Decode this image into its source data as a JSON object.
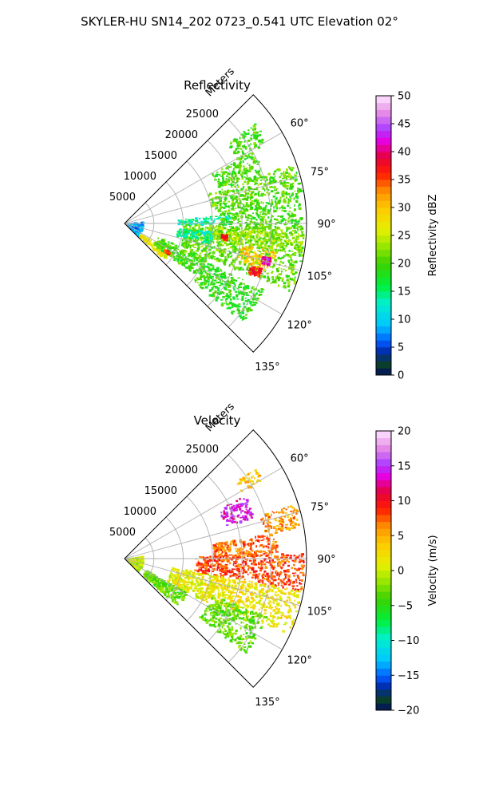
{
  "figure": {
    "suptitle": "SKYLER-HU  SN14_202  0723_0.541 UTC Elevation 02°"
  },
  "chart_data": [
    {
      "type": "heatmap",
      "projection": "polar-sector",
      "title": "Reflectivity",
      "radial_label": "Meters",
      "r_ticks": [
        5000,
        10000,
        15000,
        20000,
        25000
      ],
      "r_tick_labels": [
        "5000",
        "10000",
        "15000",
        "20000",
        "25000"
      ],
      "r_max": 31000,
      "theta_range_deg": [
        45,
        135
      ],
      "theta_ticks": [
        60,
        75,
        90,
        105,
        120,
        135
      ],
      "theta_tick_labels": [
        "60°",
        "75°",
        "90°",
        "105°",
        "120°",
        "135°"
      ],
      "grid": true,
      "colorbar": {
        "label": "Reflectivity dBZ",
        "range": [
          0,
          50
        ],
        "ticks": [
          0,
          5,
          10,
          15,
          20,
          25,
          30,
          35,
          40,
          45,
          50
        ],
        "tick_labels": [
          "0",
          "5",
          "10",
          "15",
          "20",
          "25",
          "30",
          "35",
          "40",
          "45",
          "50"
        ]
      },
      "regions": [
        {
          "theta": [
            83,
            134
          ],
          "r": [
            200,
            3000
          ],
          "value": 8
        },
        {
          "theta": [
            123,
            132
          ],
          "r": [
            3000,
            9000
          ],
          "value": 27
        },
        {
          "theta": [
            112,
            126
          ],
          "r": [
            6000,
            15000
          ],
          "value": 20
        },
        {
          "theta": [
            90,
            112
          ],
          "r": [
            10000,
            30500
          ],
          "value": 21
        },
        {
          "theta": [
            92,
            100
          ],
          "r": [
            14000,
            30500
          ],
          "value": 23
        },
        {
          "theta": [
            100,
            108
          ],
          "r": [
            20000,
            26000
          ],
          "value": 30
        },
        {
          "theta": [
            95,
            103
          ],
          "r": [
            9000,
            15000
          ],
          "value": 14
        },
        {
          "theta": [
            85,
            90
          ],
          "r": [
            9000,
            18000
          ],
          "value": 14
        },
        {
          "theta": [
            80,
            90
          ],
          "r": [
            16000,
            30000
          ],
          "value": 20
        },
        {
          "theta": [
            70,
            80
          ],
          "r": [
            15000,
            30500
          ],
          "value": 21
        },
        {
          "theta": [
            60,
            70
          ],
          "r": [
            17000,
            25000
          ],
          "value": 20
        },
        {
          "theta": [
            115,
            130
          ],
          "r": [
            15000,
            26000
          ],
          "value": 19
        },
        {
          "theta": [
            52,
            60
          ],
          "r": [
            22000,
            28000
          ],
          "value": 20
        }
      ],
      "hotspots": [
        {
          "theta": [
            103,
            106
          ],
          "r": [
            24000,
            25500
          ],
          "value": 41
        },
        {
          "theta": [
            108,
            112
          ],
          "r": [
            22500,
            24500
          ],
          "value": 37
        },
        {
          "theta": [
            96,
            99
          ],
          "r": [
            16500,
            17500
          ],
          "value": 36
        },
        {
          "theta": [
            122,
            125
          ],
          "r": [
            8000,
            9000
          ],
          "value": 35
        }
      ]
    },
    {
      "type": "heatmap",
      "projection": "polar-sector",
      "title": "Velocity",
      "radial_label": "Meters",
      "r_ticks": [
        5000,
        10000,
        15000,
        20000,
        25000
      ],
      "r_tick_labels": [
        "5000",
        "10000",
        "15000",
        "20000",
        "25000"
      ],
      "r_max": 31000,
      "theta_range_deg": [
        45,
        135
      ],
      "theta_ticks": [
        60,
        75,
        90,
        105,
        120,
        135
      ],
      "theta_tick_labels": [
        "60°",
        "75°",
        "90°",
        "105°",
        "120°",
        "135°"
      ],
      "grid": true,
      "colorbar": {
        "label": "Velocity (m/s)",
        "range": [
          -20,
          20
        ],
        "ticks": [
          -20,
          -15,
          -10,
          -5,
          0,
          5,
          10,
          15,
          20
        ],
        "tick_labels": [
          "−20",
          "−15",
          "−10",
          "−5",
          "0",
          "5",
          "10",
          "15",
          "20"
        ]
      },
      "regions": [
        {
          "theta": [
            80,
            134
          ],
          "r": [
            200,
            3000
          ],
          "value": 0
        },
        {
          "theta": [
            118,
            132
          ],
          "r": [
            4000,
            12000
          ],
          "value": -3
        },
        {
          "theta": [
            100,
            118
          ],
          "r": [
            8000,
            16000
          ],
          "value": 1
        },
        {
          "theta": [
            88,
            100
          ],
          "r": [
            12000,
            30500
          ],
          "value": 8
        },
        {
          "theta": [
            100,
            115
          ],
          "r": [
            15000,
            30500
          ],
          "value": 2
        },
        {
          "theta": [
            112,
            128
          ],
          "r": [
            16000,
            26000
          ],
          "value": -3
        },
        {
          "theta": [
            80,
            88
          ],
          "r": [
            15000,
            26000
          ],
          "value": 7
        },
        {
          "theta": [
            72,
            80
          ],
          "r": [
            24000,
            30500
          ],
          "value": 6
        },
        {
          "theta": [
            62,
            72
          ],
          "r": [
            18000,
            23000
          ],
          "value": 14
        },
        {
          "theta": [
            55,
            60
          ],
          "r": [
            23000,
            27000
          ],
          "value": 4
        }
      ],
      "hotspots": []
    }
  ]
}
